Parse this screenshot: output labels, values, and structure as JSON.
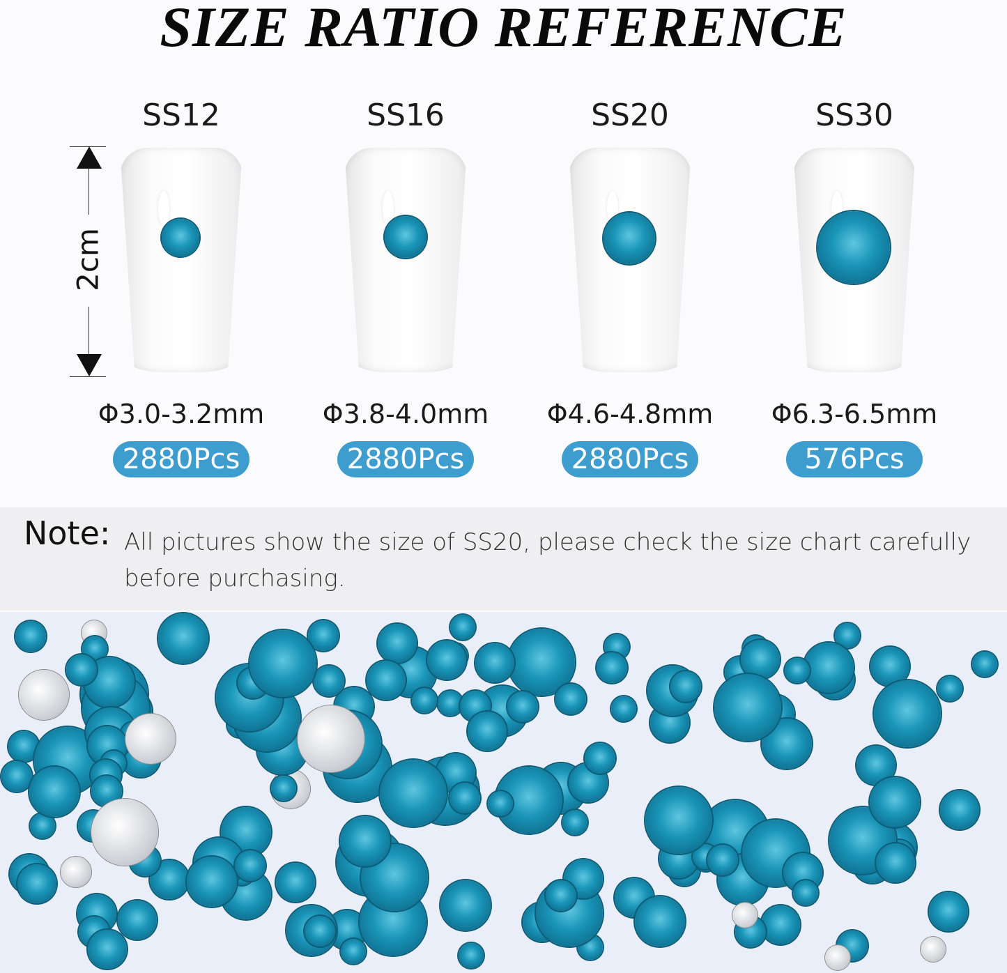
{
  "title": "SIZE RATIO REFERENCE",
  "ruler_label": "2cm",
  "accent_color": "#3d9dcf",
  "gem_color": "#1a95b8",
  "sizes": [
    {
      "name": "SS12",
      "diameter": "Φ3.0-3.2mm",
      "count": "2880Pcs"
    },
    {
      "name": "SS16",
      "diameter": "Φ3.8-4.0mm",
      "count": "2880Pcs"
    },
    {
      "name": "SS20",
      "diameter": "Φ4.6-4.8mm",
      "count": "2880Pcs"
    },
    {
      "name": "SS30",
      "diameter": "Φ6.3-6.5mm",
      "count": "576Pcs"
    }
  ],
  "note": {
    "label": "Note:",
    "text": "All pictures show the size of SS20, please check the size chart carefully before purchasing."
  }
}
